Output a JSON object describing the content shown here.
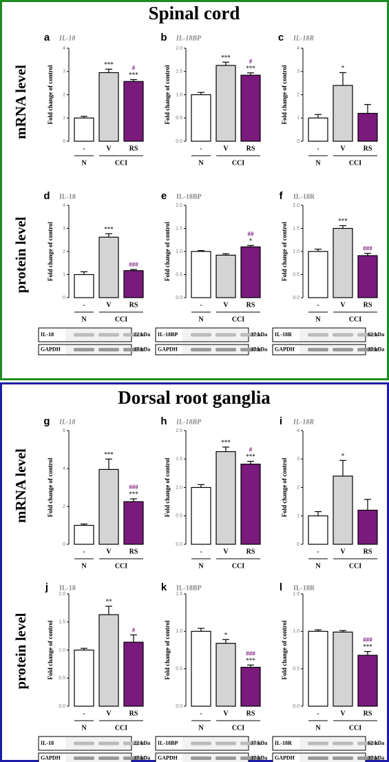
{
  "sections": [
    {
      "title": "Spinal cord",
      "row_labels": [
        "mRNA level",
        "protein level"
      ]
    },
    {
      "title": "Dorsal root ganglia",
      "row_labels": [
        "mRNA level",
        "protein level"
      ]
    }
  ],
  "chart_data": [
    {
      "type": "bar",
      "letter": "a",
      "title": "IL-18",
      "title_style": "italic",
      "ylabel": "Fold change of control",
      "categories": [
        "-",
        "V",
        "RS"
      ],
      "groups": [
        "N",
        "CCI"
      ],
      "colors": [
        "#ffffff",
        "#d4d4d4",
        "#7a1a7c"
      ],
      "values": [
        1.0,
        2.95,
        2.57
      ],
      "errors": [
        0.07,
        0.15,
        0.08
      ],
      "stars": [
        null,
        "***",
        "***"
      ],
      "hashes": [
        null,
        null,
        "#"
      ],
      "ylim": [
        0,
        4
      ],
      "yticks": [
        0,
        1,
        2,
        3,
        4
      ]
    },
    {
      "type": "bar",
      "letter": "b",
      "title": "IL-18BP",
      "title_style": "italic",
      "ylabel": "Fold change of control",
      "categories": [
        "-",
        "V",
        "RS"
      ],
      "groups": [
        "N",
        "CCI"
      ],
      "colors": [
        "#ffffff",
        "#d4d4d4",
        "#7a1a7c"
      ],
      "values": [
        1.0,
        1.63,
        1.42
      ],
      "errors": [
        0.05,
        0.07,
        0.05
      ],
      "stars": [
        null,
        "***",
        "***"
      ],
      "hashes": [
        null,
        null,
        "#"
      ],
      "ylim": [
        0,
        2
      ],
      "yticks": [
        {
          "value": 0,
          "label": "0.0"
        },
        {
          "value": 0.5,
          "label": "0.5"
        },
        {
          "value": 1,
          "label": "1.0"
        },
        {
          "value": 1.5,
          "label": "1.5"
        },
        {
          "value": 2,
          "label": "2.0"
        }
      ]
    },
    {
      "type": "bar",
      "letter": "c",
      "title": "IL-18R",
      "title_style": "italic",
      "ylabel": "Fold change of control",
      "categories": [
        "-",
        "V",
        "RS"
      ],
      "groups": [
        "N",
        "CCI"
      ],
      "colors": [
        "#ffffff",
        "#d4d4d4",
        "#7a1a7c"
      ],
      "values": [
        1.0,
        2.4,
        1.2
      ],
      "errors": [
        0.15,
        0.55,
        0.38
      ],
      "stars": [
        null,
        "*",
        null
      ],
      "hashes": [
        null,
        null,
        null
      ],
      "ylim": [
        0,
        4
      ],
      "yticks": [
        0,
        1,
        2,
        3,
        4
      ]
    },
    {
      "type": "bar",
      "letter": "d",
      "title": "IL-18",
      "title_style": "normal",
      "ylabel": "Fold change of control",
      "categories": [
        "-",
        "V",
        "RS"
      ],
      "groups": [
        "N",
        "CCI"
      ],
      "colors": [
        "#ffffff",
        "#d4d4d4",
        "#7a1a7c"
      ],
      "values": [
        1.0,
        2.62,
        1.17
      ],
      "errors": [
        0.12,
        0.15,
        0.05
      ],
      "stars": [
        null,
        "***",
        null
      ],
      "hashes": [
        null,
        null,
        "###"
      ],
      "ylim": [
        0,
        4
      ],
      "yticks": [
        0,
        1,
        2,
        3,
        4
      ],
      "blot": {
        "target": "IL-18",
        "target_kda": "22 kDa",
        "control": "GAPDH",
        "control_kda": "37 kDa"
      }
    },
    {
      "type": "bar",
      "letter": "e",
      "title": "IL-18BP",
      "title_style": "normal",
      "ylabel": "Fold change of control",
      "categories": [
        "-",
        "V",
        "RS"
      ],
      "groups": [
        "N",
        "CCI"
      ],
      "colors": [
        "#ffffff",
        "#d4d4d4",
        "#7a1a7c"
      ],
      "values": [
        1.0,
        0.92,
        1.1
      ],
      "errors": [
        0.02,
        0.03,
        0.03
      ],
      "stars": [
        null,
        null,
        "*"
      ],
      "hashes": [
        null,
        null,
        "##"
      ],
      "ylim": [
        0,
        2
      ],
      "yticks": [
        {
          "value": 0,
          "label": "0.0"
        },
        {
          "value": 0.5,
          "label": "0.5"
        },
        {
          "value": 1,
          "label": "1.0"
        },
        {
          "value": 1.5,
          "label": "1.5"
        },
        {
          "value": 2,
          "label": "2.0"
        }
      ],
      "blot": {
        "target": "IL-18BP",
        "target_kda": "37 kDa",
        "control": "GAPDH",
        "control_kda": "37 kDa"
      }
    },
    {
      "type": "bar",
      "letter": "f",
      "title": "IL-18R",
      "title_style": "normal",
      "ylabel": "Fold change of control",
      "categories": [
        "-",
        "V",
        "RS"
      ],
      "groups": [
        "N",
        "CCI"
      ],
      "colors": [
        "#ffffff",
        "#d4d4d4",
        "#7a1a7c"
      ],
      "values": [
        1.0,
        1.5,
        0.91
      ],
      "errors": [
        0.05,
        0.06,
        0.05
      ],
      "stars": [
        null,
        "***",
        null
      ],
      "hashes": [
        null,
        null,
        "###"
      ],
      "ylim": [
        0,
        2
      ],
      "yticks": [
        {
          "value": 0,
          "label": "0.0"
        },
        {
          "value": 0.5,
          "label": "0.5"
        },
        {
          "value": 1,
          "label": "1.0"
        },
        {
          "value": 1.5,
          "label": "1.5"
        },
        {
          "value": 2,
          "label": "2.0"
        }
      ],
      "blot": {
        "target": "IL-18R",
        "target_kda": "62 kDa",
        "control": "GAPDH",
        "control_kda": "37 kDa"
      }
    },
    {
      "type": "bar",
      "letter": "g",
      "title": "IL-18",
      "title_style": "italic",
      "ylabel": "Fold change of control",
      "categories": [
        "-",
        "V",
        "RS"
      ],
      "groups": [
        "N",
        "CCI"
      ],
      "colors": [
        "#ffffff",
        "#d4d4d4",
        "#7a1a7c"
      ],
      "values": [
        1.0,
        3.95,
        2.25
      ],
      "errors": [
        0.07,
        0.55,
        0.15
      ],
      "stars": [
        null,
        "***",
        "***"
      ],
      "hashes": [
        null,
        null,
        "###"
      ],
      "ylim": [
        0,
        6
      ],
      "yticks": [
        0,
        2,
        4,
        6
      ]
    },
    {
      "type": "bar",
      "letter": "h",
      "title": "IL-18BP",
      "title_style": "italic",
      "ylabel": "Fold change of control",
      "categories": [
        "-",
        "V",
        "RS"
      ],
      "groups": [
        "N",
        "CCI"
      ],
      "colors": [
        "#ffffff",
        "#d4d4d4",
        "#7a1a7c"
      ],
      "values": [
        1.0,
        1.63,
        1.41
      ],
      "errors": [
        0.05,
        0.08,
        0.05
      ],
      "stars": [
        null,
        "***",
        "***"
      ],
      "hashes": [
        null,
        null,
        "#"
      ],
      "ylim": [
        0,
        2
      ],
      "yticks": [
        {
          "value": 0,
          "label": "0.0"
        },
        {
          "value": 0.5,
          "label": "0.5"
        },
        {
          "value": 1,
          "label": "1.0"
        },
        {
          "value": 1.5,
          "label": "1.5"
        },
        {
          "value": 2,
          "label": "2.0"
        }
      ]
    },
    {
      "type": "bar",
      "letter": "i",
      "title": "IL-18R",
      "title_style": "italic",
      "ylabel": "Fold change of control",
      "categories": [
        "-",
        "V",
        "RS"
      ],
      "groups": [
        "N",
        "CCI"
      ],
      "colors": [
        "#ffffff",
        "#d4d4d4",
        "#7a1a7c"
      ],
      "values": [
        1.0,
        2.4,
        1.2
      ],
      "errors": [
        0.15,
        0.55,
        0.38
      ],
      "stars": [
        null,
        "*",
        null
      ],
      "hashes": [
        null,
        null,
        null
      ],
      "ylim": [
        0,
        4
      ],
      "yticks": [
        0,
        1,
        2,
        3,
        4
      ]
    },
    {
      "type": "bar",
      "letter": "j",
      "title": "IL-18",
      "title_style": "normal",
      "ylabel": "Fold change of control",
      "categories": [
        "-",
        "V",
        "RS"
      ],
      "groups": [
        "N",
        "CCI"
      ],
      "colors": [
        "#ffffff",
        "#d4d4d4",
        "#7a1a7c"
      ],
      "values": [
        1.0,
        1.63,
        1.14
      ],
      "errors": [
        0.03,
        0.15,
        0.13
      ],
      "stars": [
        null,
        "**",
        null
      ],
      "hashes": [
        null,
        null,
        "#"
      ],
      "ylim": [
        0,
        2
      ],
      "yticks": [
        {
          "value": 0,
          "label": "0.0"
        },
        {
          "value": 0.5,
          "label": "0.5"
        },
        {
          "value": 1,
          "label": "1.0"
        },
        {
          "value": 1.5,
          "label": "1.5"
        },
        {
          "value": 2,
          "label": "2.0"
        }
      ],
      "blot": {
        "target": "IL-18",
        "target_kda": "22 kDa",
        "control": "GAPDH",
        "control_kda": "37 kDa"
      }
    },
    {
      "type": "bar",
      "letter": "k",
      "title": "IL-18BP",
      "title_style": "normal",
      "ylabel": "Fold change of control",
      "categories": [
        "-",
        "V",
        "RS"
      ],
      "groups": [
        "N",
        "CCI"
      ],
      "colors": [
        "#ffffff",
        "#d4d4d4",
        "#7a1a7c"
      ],
      "values": [
        1.0,
        0.84,
        0.52
      ],
      "errors": [
        0.04,
        0.05,
        0.03
      ],
      "stars": [
        null,
        "*",
        "***"
      ],
      "hashes": [
        null,
        null,
        "###"
      ],
      "ylim": [
        0,
        1.5
      ],
      "yticks": [
        {
          "value": 0,
          "label": "0.0"
        },
        {
          "value": 0.5,
          "label": "0.5"
        },
        {
          "value": 1,
          "label": "1.0"
        },
        {
          "value": 1.5,
          "label": "1.5"
        }
      ],
      "blot": {
        "target": "IL-18BP",
        "target_kda": "37 kDa",
        "control": "GAPDH",
        "control_kda": "37 kDa"
      }
    },
    {
      "type": "bar",
      "letter": "l",
      "title": "IL-18R",
      "title_style": "normal",
      "ylabel": "Fold change of control",
      "categories": [
        "-",
        "V",
        "RS"
      ],
      "groups": [
        "N",
        "CCI"
      ],
      "colors": [
        "#ffffff",
        "#d4d4d4",
        "#7a1a7c"
      ],
      "values": [
        1.0,
        0.99,
        0.68
      ],
      "errors": [
        0.02,
        0.02,
        0.05
      ],
      "stars": [
        null,
        null,
        "***"
      ],
      "hashes": [
        null,
        null,
        "###"
      ],
      "ylim": [
        0,
        1.5
      ],
      "yticks": [
        {
          "value": 0,
          "label": "0.0"
        },
        {
          "value": 0.5,
          "label": "0.5"
        },
        {
          "value": 1,
          "label": "1.0"
        },
        {
          "value": 1.5,
          "label": "1.5"
        }
      ],
      "blot": {
        "target": "IL-18R",
        "target_kda": "62 kDa",
        "control": "GAPDH",
        "control_kda": "37 kDa"
      }
    }
  ]
}
